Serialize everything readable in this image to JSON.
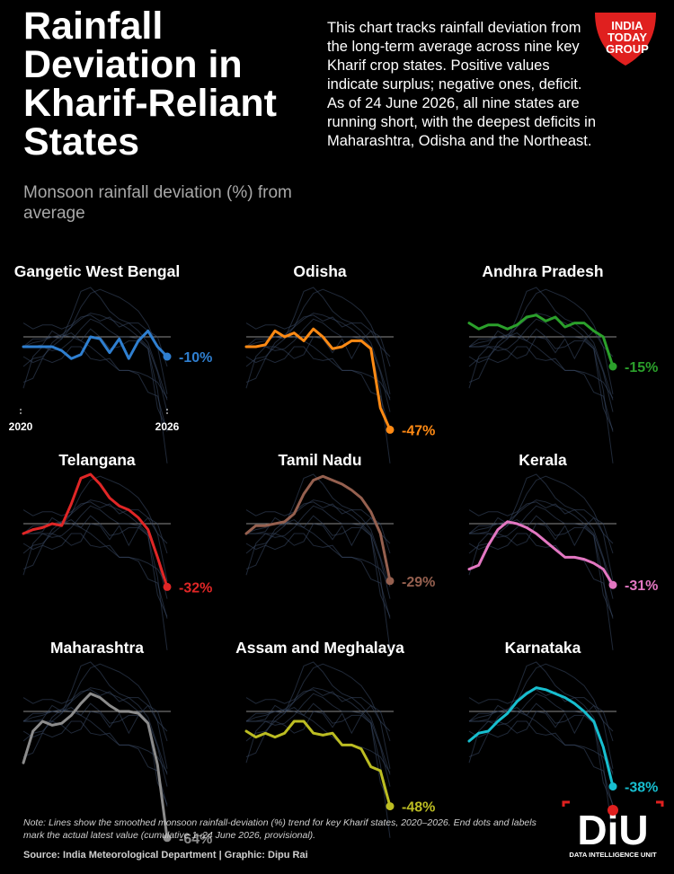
{
  "header": {
    "title": "Rainfall Deviation in Kharif-Reliant States",
    "subtitle": "Monsoon rainfall deviation (%) from average",
    "description": "This chart tracks rainfall deviation from the long-term average across nine key Kharif crop states. Positive values indicate surplus; negative ones, deficit. As of 24 June 2026, all nine states are running short, with the deepest deficits in Maharashtra, Odisha and the Northeast."
  },
  "logos": {
    "india_today": {
      "line1": "INDIA",
      "line2": "TODAY",
      "line3": "GROUP"
    },
    "diu": {
      "mark": "DiU",
      "tagline": "DATA INTELLIGENCE UNIT"
    }
  },
  "footer": {
    "note": "Note: Lines show the smoothed monsoon rainfall-deviation (%) trend for key Kharif states, 2020–2026. End dots and labels mark the actual latest value (cumulative 1–24 June 2026, provisional).",
    "source": "Source: India Meteorological Department  |  Graphic: Dipu Rai"
  },
  "colors": {
    "background": "#000000",
    "background_lines": "#3b4a66",
    "zero_line": "#8a8a8a"
  },
  "chart_data": {
    "type": "line",
    "title": "Rainfall Deviation in Kharif-Reliant States",
    "subtitle": "Monsoon rainfall deviation (%) from average",
    "xlabel": "",
    "ylabel": "",
    "x_range": [
      2020,
      2026
    ],
    "x_tick_labels": [
      "2020",
      "2026"
    ],
    "ylim": [
      -70,
      30
    ],
    "layout": "3x3 small multiples",
    "grid": false,
    "zero_line": true,
    "panels": [
      {
        "name": "Gangetic West Bengal",
        "color": "#2f7fd0",
        "label": "-10%",
        "values": [
          -5,
          -5,
          -5,
          -5,
          -7,
          -11,
          -9,
          0,
          -1,
          -8,
          -1,
          -11,
          -2,
          3,
          -5,
          -10
        ]
      },
      {
        "name": "Odisha",
        "color": "#ff8a14",
        "label": "-47%",
        "values": [
          -5,
          -5,
          -4,
          3,
          0,
          2,
          -2,
          4,
          0,
          -6,
          -5,
          -2,
          -2,
          -6,
          -36,
          -47
        ]
      },
      {
        "name": "Andhra Pradesh",
        "color": "#2ba02b",
        "label": "-15%",
        "values": [
          7,
          4,
          6,
          6,
          4,
          6,
          10,
          11,
          8,
          10,
          5,
          7,
          7,
          3,
          0,
          -15
        ]
      },
      {
        "name": "Telangana",
        "color": "#e02626",
        "label": "-32%",
        "values": [
          -5,
          -3,
          -2,
          0,
          -1,
          10,
          23,
          25,
          20,
          13,
          9,
          7,
          3,
          -3,
          -17,
          -32
        ]
      },
      {
        "name": "Tamil Nadu",
        "color": "#95604f",
        "label": "-29%",
        "values": [
          -5,
          -1,
          -1,
          0,
          1,
          5,
          15,
          22,
          24,
          22,
          20,
          17,
          13,
          6,
          -5,
          -29
        ]
      },
      {
        "name": "Kerala",
        "color": "#e377c2",
        "label": "-31%",
        "values": [
          -23,
          -21,
          -11,
          -3,
          1,
          0,
          -2,
          -5,
          -9,
          -13,
          -17,
          -17,
          -18,
          -20,
          -23,
          -31
        ]
      },
      {
        "name": "Maharashtra",
        "color": "#8c8c8c",
        "label": "-64%",
        "values": [
          -26,
          -10,
          -5,
          -7,
          -6,
          -2,
          4,
          9,
          7,
          3,
          0,
          0,
          -1,
          -6,
          -27,
          -64
        ]
      },
      {
        "name": "Assam and Meghalaya",
        "color": "#bcbd22",
        "label": "-48%",
        "values": [
          -10,
          -13,
          -11,
          -13,
          -11,
          -5,
          -5,
          -11,
          -12,
          -11,
          -17,
          -17,
          -19,
          -28,
          -30,
          -48
        ]
      },
      {
        "name": "Karnataka",
        "color": "#17becf",
        "label": "-38%",
        "values": [
          -15,
          -11,
          -10,
          -5,
          -1,
          5,
          9,
          12,
          11,
          9,
          7,
          4,
          0,
          -5,
          -18,
          -38
        ]
      }
    ]
  }
}
